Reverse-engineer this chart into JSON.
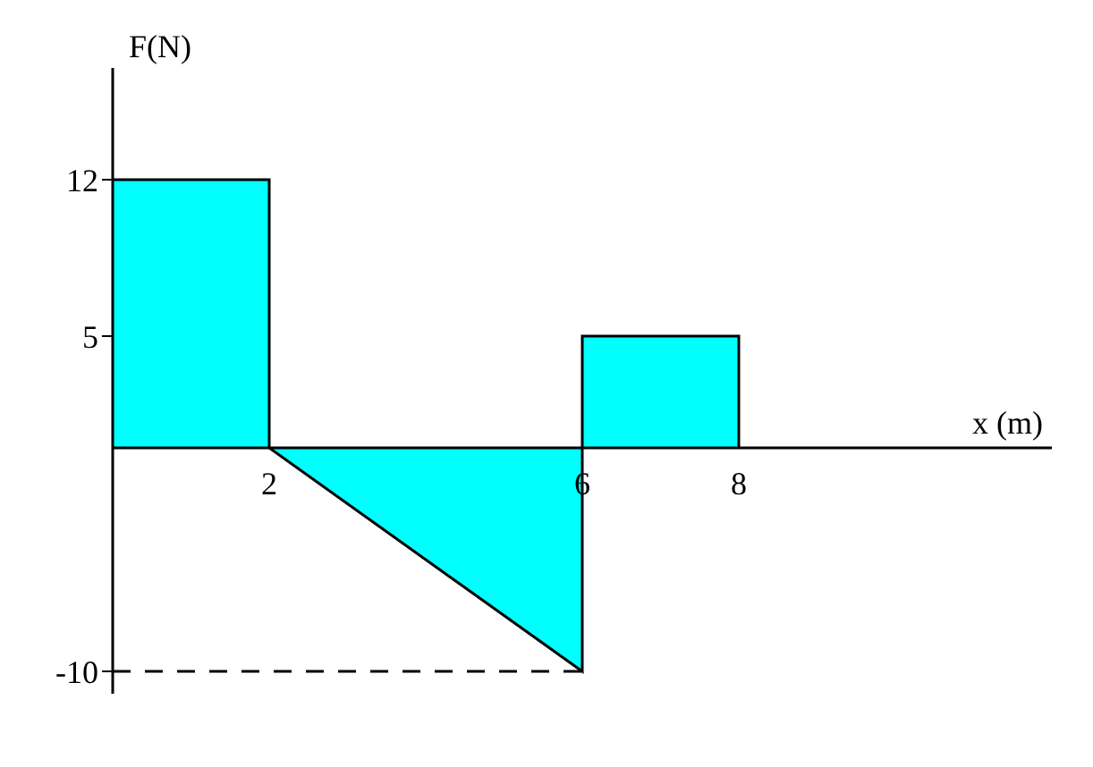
{
  "chart_data": {
    "type": "area",
    "xlabel": "x (m)",
    "ylabel": "F(N)",
    "x": [
      0,
      2,
      2,
      6,
      6,
      8,
      8
    ],
    "values": [
      12,
      12,
      0,
      -10,
      5,
      5,
      0
    ],
    "color": "#00ffff",
    "xlim": [
      0,
      12
    ],
    "xticks": [
      2,
      6,
      8
    ],
    "ylim": [
      -11,
      17
    ],
    "yticks": [
      -10,
      5,
      12
    ],
    "grid": false,
    "ref_lines": [
      {
        "axis": "y",
        "value": -10,
        "line_style": "dashed",
        "color": "#000000"
      }
    ]
  }
}
